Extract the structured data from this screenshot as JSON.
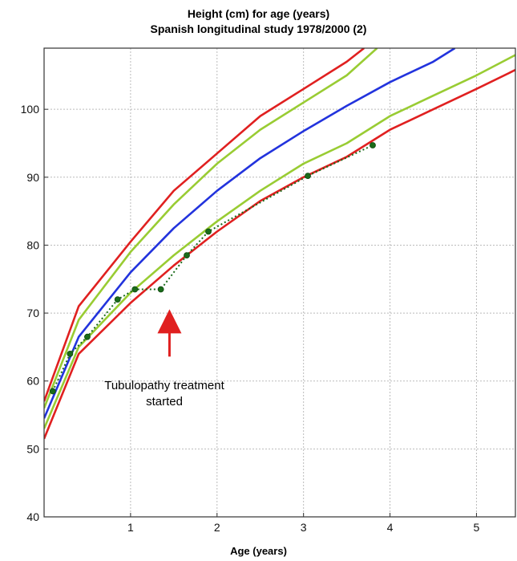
{
  "chart_data": {
    "type": "line",
    "title": "Height  (cm) for age (years)",
    "subtitle": "Spanish longitudinal study 1978/2000 (2)",
    "xlabel": "Age (years)",
    "ylabel": "",
    "xlim": [
      0,
      5.45
    ],
    "ylim": [
      40,
      109
    ],
    "x_ticks": [
      1,
      2,
      3,
      4,
      5
    ],
    "y_ticks": [
      40,
      50,
      60,
      70,
      80,
      90,
      100
    ],
    "grid": true,
    "legend": "none",
    "annotation": {
      "text_line1": "Tubulopathy treatment",
      "text_line2": "started",
      "arrow_color": "#e02020",
      "arrow_x": 1.45,
      "arrow_points_to_y": 69.5
    },
    "series": [
      {
        "color": "#e02020",
        "style": "solid",
        "points": [
          [
            0,
            51.5
          ],
          [
            0.4,
            64
          ],
          [
            1,
            71.5
          ],
          [
            1.5,
            77
          ],
          [
            2,
            82
          ],
          [
            2.5,
            86.5
          ],
          [
            3,
            90
          ],
          [
            3.5,
            93
          ],
          [
            4,
            97
          ],
          [
            4.5,
            100
          ],
          [
            5,
            103
          ],
          [
            5.45,
            105.8
          ]
        ]
      },
      {
        "color": "#99cc33",
        "style": "solid",
        "points": [
          [
            0,
            53
          ],
          [
            0.4,
            65
          ],
          [
            1,
            73
          ],
          [
            1.5,
            78.5
          ],
          [
            2,
            83.5
          ],
          [
            2.5,
            88
          ],
          [
            3,
            92
          ],
          [
            3.5,
            95
          ],
          [
            4,
            99
          ],
          [
            4.5,
            102
          ],
          [
            5,
            105
          ],
          [
            5.45,
            108
          ]
        ]
      },
      {
        "color": "#2233dd",
        "style": "solid",
        "points": [
          [
            0,
            54.5
          ],
          [
            0.4,
            66.5
          ],
          [
            1,
            76
          ],
          [
            1.5,
            82.5
          ],
          [
            2,
            88
          ],
          [
            2.5,
            92.8
          ],
          [
            3,
            96.8
          ],
          [
            3.5,
            100.5
          ],
          [
            4,
            104
          ],
          [
            4.5,
            107
          ],
          [
            4.75,
            109
          ]
        ]
      },
      {
        "color": "#99cc33",
        "style": "solid",
        "points": [
          [
            0,
            56
          ],
          [
            0.4,
            69
          ],
          [
            1,
            79
          ],
          [
            1.5,
            86
          ],
          [
            2,
            92
          ],
          [
            2.5,
            97
          ],
          [
            3,
            101
          ],
          [
            3.5,
            105
          ],
          [
            3.85,
            109
          ]
        ]
      },
      {
        "color": "#e02020",
        "style": "solid",
        "points": [
          [
            0,
            57
          ],
          [
            0.4,
            71
          ],
          [
            1,
            80.5
          ],
          [
            1.5,
            88
          ],
          [
            2,
            93.5
          ],
          [
            2.5,
            99
          ],
          [
            3,
            103
          ],
          [
            3.5,
            107
          ],
          [
            3.7,
            109
          ]
        ]
      },
      {
        "color": "#1a6b1a",
        "style": "dotted-markers",
        "points": [
          [
            0.1,
            58.5
          ],
          [
            0.3,
            64
          ],
          [
            0.5,
            66.5
          ],
          [
            0.85,
            72
          ],
          [
            1.05,
            73.5
          ],
          [
            1.35,
            73.5
          ],
          [
            1.65,
            78.5
          ],
          [
            1.9,
            82
          ],
          [
            3.05,
            90.2
          ],
          [
            3.8,
            94.7
          ]
        ]
      }
    ]
  }
}
